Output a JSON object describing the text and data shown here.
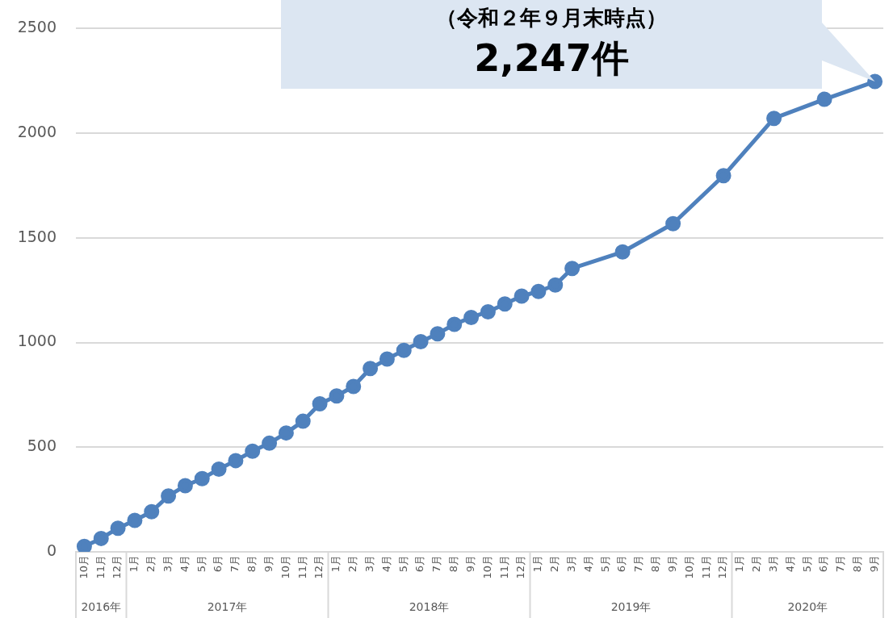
{
  "chart_data": {
    "type": "line",
    "categories": [
      "10月",
      "11月",
      "12月",
      "1月",
      "2月",
      "3月",
      "4月",
      "5月",
      "6月",
      "7月",
      "8月",
      "9月",
      "10月",
      "11月",
      "12月",
      "1月",
      "2月",
      "3月",
      "4月",
      "5月",
      "6月",
      "7月",
      "8月",
      "9月",
      "10月",
      "11月",
      "12月",
      "1月",
      "2月",
      "3月",
      "4月",
      "5月",
      "6月",
      "7月",
      "8月",
      "9月",
      "10月",
      "11月",
      "12月",
      "1月",
      "2月",
      "3月",
      "4月",
      "5月",
      "6月",
      "7月",
      "8月",
      "9月"
    ],
    "series": [
      {
        "color": "#4f81bd",
        "values": [
          26,
          64,
          113,
          150,
          192,
          267,
          316,
          350,
          395,
          436,
          481,
          519,
          568,
          624,
          707,
          745,
          790,
          876,
          921,
          963,
          1004,
          1042,
          1087,
          1120,
          1147,
          1184,
          1222,
          1244,
          1275,
          1354,
          null,
          null,
          1433,
          null,
          null,
          1568,
          null,
          null,
          1797,
          null,
          null,
          2071,
          null,
          null,
          2162,
          null,
          null,
          2247
        ]
      }
    ],
    "ylim": [
      0,
      2500
    ],
    "yticks": [
      0,
      500,
      1000,
      1500,
      2000,
      2500
    ],
    "grid": "y",
    "legend": false,
    "marker": "circle",
    "line_style": "solid",
    "annotations": [
      "（令和２年９月末時点）",
      "2,247件",
      "2016年",
      "2017年",
      "2018年",
      "2019年",
      "2020年"
    ]
  }
}
